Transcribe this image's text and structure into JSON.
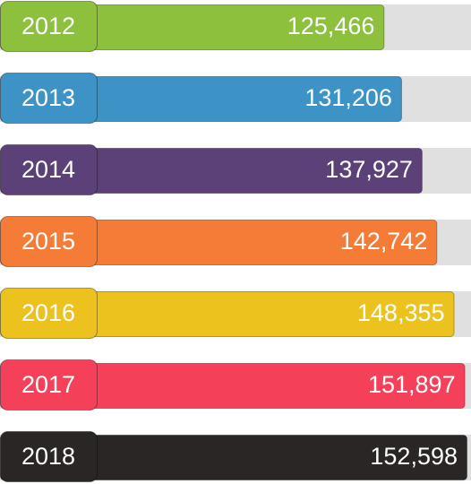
{
  "chart_data": {
    "type": "bar",
    "orientation": "horizontal",
    "categories": [
      "2012",
      "2013",
      "2014",
      "2015",
      "2016",
      "2017",
      "2018"
    ],
    "values": [
      125466,
      131206,
      137927,
      142742,
      148355,
      151897,
      152598
    ],
    "value_labels": [
      "125,466",
      "131,206",
      "137,927",
      "142,742",
      "148,355",
      "151,897",
      "152,598"
    ],
    "colors": [
      "#8dc03c",
      "#3d93c6",
      "#5c4178",
      "#f47c37",
      "#ecc21f",
      "#f5405a",
      "#2a2626"
    ]
  }
}
